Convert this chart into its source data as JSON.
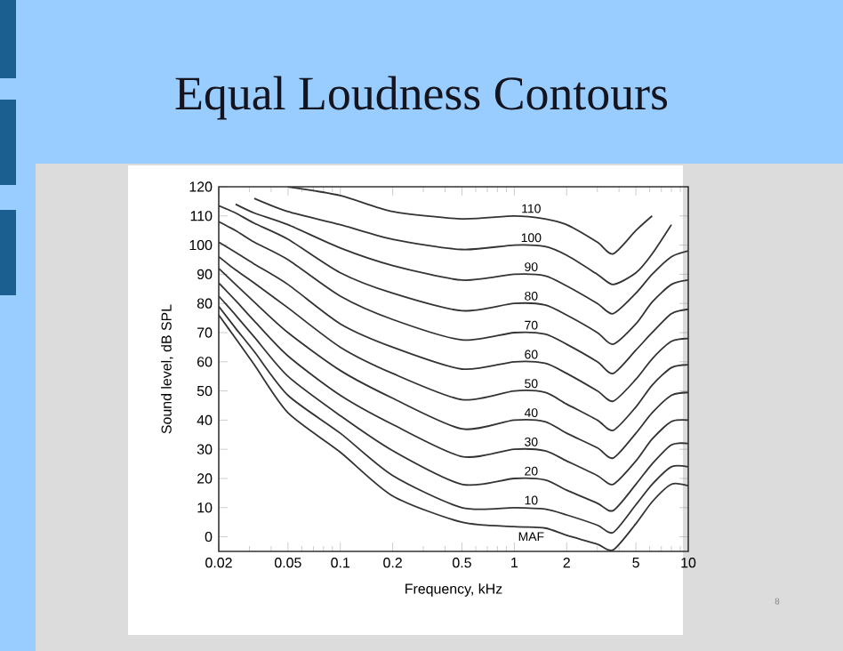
{
  "chart_data": {
    "type": "line",
    "title": "Equal Loudness Contours",
    "xlabel": "Frequency, kHz",
    "ylabel": "Sound level, dB SPL",
    "log": "x",
    "xlim": [
      0.02,
      10
    ],
    "ylim": [
      -5,
      120
    ],
    "xticks": [
      0.02,
      {
        "value": 0.03,
        "label": null
      },
      {
        "value": 0.04,
        "label": null
      },
      0.05,
      {
        "value": 0.06,
        "label": null
      },
      {
        "value": 0.07,
        "label": null
      },
      {
        "value": 0.08,
        "label": null
      },
      {
        "value": 0.09,
        "label": null
      },
      0.1,
      0.2,
      {
        "value": 0.3,
        "label": null
      },
      {
        "value": 0.4,
        "label": null
      },
      0.5,
      {
        "value": 0.6,
        "label": null
      },
      {
        "value": 0.7,
        "label": null
      },
      {
        "value": 0.8,
        "label": null
      },
      {
        "value": 0.9,
        "label": null
      },
      1,
      2,
      {
        "value": 3,
        "label": null
      },
      {
        "value": 4,
        "label": null
      },
      5,
      {
        "value": 6,
        "label": null
      },
      {
        "value": 7,
        "label": null
      },
      {
        "value": 8,
        "label": null
      },
      {
        "value": 9,
        "label": null
      },
      10
    ],
    "yticks": [
      0,
      10,
      20,
      30,
      40,
      50,
      60,
      70,
      80,
      90,
      100,
      110,
      120
    ],
    "x": [
      0.02,
      0.025,
      0.032,
      0.05,
      0.1,
      0.2,
      0.5,
      1,
      1.5,
      2,
      3,
      3.7,
      5,
      6.2,
      8,
      10
    ],
    "series": [
      {
        "name": "110",
        "color": "#333333",
        "values": [
          null,
          null,
          null,
          120,
          117,
          111.5,
          109,
          110,
          109,
          107,
          101,
          97,
          105,
          110,
          null,
          null
        ]
      },
      {
        "name": "100",
        "color": "#333333",
        "values": [
          null,
          null,
          116,
          111.5,
          107,
          102,
          98.5,
          100,
          99.5,
          96.5,
          90,
          86.5,
          90.5,
          97,
          107,
          null
        ]
      },
      {
        "name": "90",
        "color": "#333333",
        "values": [
          null,
          114,
          111,
          107,
          99,
          93,
          88,
          90,
          89.5,
          86,
          80,
          76.5,
          83.5,
          90,
          96,
          98
        ]
      },
      {
        "name": "80",
        "color": "#333333",
        "values": [
          113.5,
          111,
          107.5,
          102,
          90.5,
          83.5,
          77.5,
          80,
          79.5,
          76,
          70,
          66,
          73,
          80.5,
          86.5,
          88
        ]
      },
      {
        "name": "70",
        "color": "#333333",
        "values": [
          108,
          105,
          101,
          95,
          82.5,
          74.5,
          67.5,
          70,
          69.5,
          66,
          60,
          56,
          64,
          70,
          76.5,
          78
        ]
      },
      {
        "name": "60",
        "color": "#333333",
        "values": [
          101,
          97.5,
          93.5,
          86.5,
          73,
          65,
          57.5,
          60,
          59.5,
          56,
          50,
          46.5,
          54,
          61,
          67,
          68
        ]
      },
      {
        "name": "50",
        "color": "#333333",
        "values": [
          96,
          91.5,
          87,
          78.5,
          65,
          56,
          47,
          50,
          49.5,
          45.5,
          40,
          36.5,
          44.5,
          52,
          58,
          59
        ]
      },
      {
        "name": "40",
        "color": "#333333",
        "values": [
          92,
          86.5,
          80.5,
          70,
          57,
          47.5,
          37,
          40,
          39.5,
          35.5,
          30.5,
          27,
          35.5,
          42.5,
          48.5,
          49.5
        ]
      },
      {
        "name": "30",
        "color": "#333333",
        "values": [
          87,
          81,
          74,
          62,
          48.5,
          38.5,
          27.5,
          30,
          29.5,
          26,
          21,
          18,
          26,
          33.5,
          39.5,
          40
        ]
      },
      {
        "name": "20",
        "color": "#333333",
        "values": [
          82.5,
          76,
          68.5,
          55,
          41.5,
          29.5,
          18,
          20,
          19.5,
          16,
          11.5,
          9,
          18,
          25,
          31.5,
          32
        ]
      },
      {
        "name": "10",
        "color": "#333333",
        "values": [
          79,
          71.5,
          63.5,
          48.5,
          35.5,
          21,
          10,
          10,
          9.5,
          7.5,
          4,
          1.5,
          11,
          18,
          24,
          24
        ]
      },
      {
        "name": "MAF",
        "color": "#333333",
        "values": [
          76,
          68,
          59,
          42.5,
          29,
          14,
          5,
          3.5,
          3,
          0.5,
          -2.5,
          -4.5,
          4.5,
          12,
          18,
          17.5
        ]
      }
    ],
    "grid": false,
    "marker": "none",
    "line_style": "solid",
    "annotations": [
      "8"
    ]
  }
}
